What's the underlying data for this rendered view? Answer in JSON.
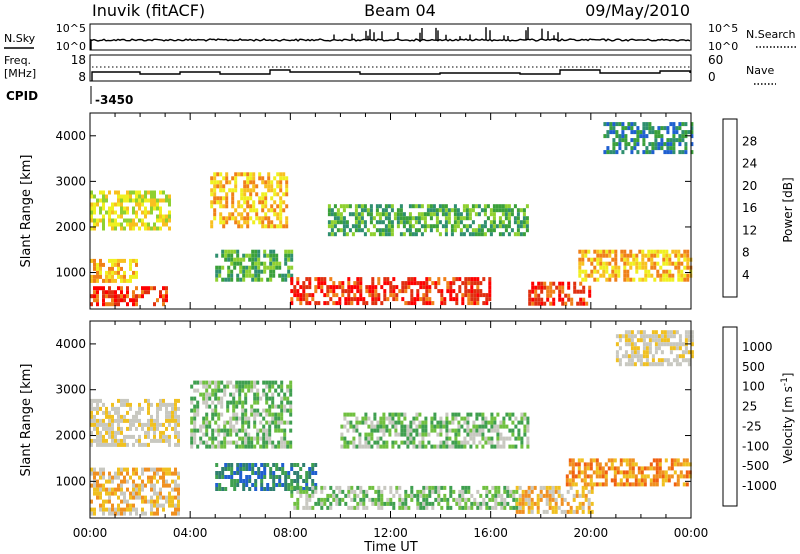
{
  "header": {
    "station": "Inuvik (fitACF)",
    "beam": "Beam 04",
    "date": "09/May/2010"
  },
  "top_panels": {
    "nsky": {
      "label": "N.Sky",
      "right_label": "N.Search",
      "left_ticks": [
        "10^5",
        "10^0"
      ],
      "right_ticks": [
        "10^5",
        "10^0"
      ]
    },
    "freq": {
      "label_line1": "Freq.",
      "label_line2": "[MHz]",
      "left_ticks": [
        "18",
        "8"
      ],
      "right_label": "Nave",
      "right_ticks": [
        "60",
        "0"
      ]
    },
    "cpid": {
      "label": "CPID",
      "value": "-3450"
    }
  },
  "chart_data": [
    {
      "type": "heatmap",
      "title": "",
      "xlabel": "Time UT",
      "ylabel": "Slant Range [km]",
      "x_range_hours": [
        0,
        24
      ],
      "x_ticks": [
        "00:00",
        "04:00",
        "08:00",
        "12:00",
        "16:00",
        "20:00",
        "00:00"
      ],
      "y_range_km": [
        200,
        4500
      ],
      "y_ticks": [
        1000,
        2000,
        3000,
        4000
      ],
      "colorbar": {
        "label": "Power [dB]",
        "ticks": [
          "4",
          "8",
          "12",
          "16",
          "20",
          "24",
          "28"
        ],
        "colors": [
          "#0000ff",
          "#1f5fd0",
          "#2f8f6f",
          "#3aa03a",
          "#8fd030",
          "#f0f020",
          "#f8c020",
          "#f08018",
          "#e03010",
          "#ff0000"
        ]
      },
      "echo_regions": [
        {
          "t": [
            0.0,
            3.0
          ],
          "range_km": [
            300,
            700
          ],
          "level": "28"
        },
        {
          "t": [
            0.0,
            1.8
          ],
          "range_km": [
            850,
            1300
          ],
          "level": "20"
        },
        {
          "t": [
            0.0,
            3.2
          ],
          "range_km": [
            2000,
            2800
          ],
          "level": "16"
        },
        {
          "t": [
            4.8,
            7.8
          ],
          "range_km": [
            2000,
            3200
          ],
          "level": "20"
        },
        {
          "t": [
            5.0,
            8.0
          ],
          "range_km": [
            800,
            1500
          ],
          "level": "12"
        },
        {
          "t": [
            8.0,
            16.0
          ],
          "range_km": [
            300,
            900
          ],
          "level": "28"
        },
        {
          "t": [
            9.5,
            17.5
          ],
          "range_km": [
            1800,
            2500
          ],
          "level": "12"
        },
        {
          "t": [
            17.5,
            20.0
          ],
          "range_km": [
            300,
            800
          ],
          "level": "28"
        },
        {
          "t": [
            19.5,
            24.0
          ],
          "range_km": [
            800,
            1500
          ],
          "level": "20"
        },
        {
          "t": [
            20.5,
            24.0
          ],
          "range_km": [
            3600,
            4300
          ],
          "level": "8"
        }
      ]
    },
    {
      "type": "heatmap",
      "title": "",
      "xlabel": "Time UT",
      "ylabel": "Slant Range [km]",
      "x_range_hours": [
        0,
        24
      ],
      "x_ticks": [
        "00:00",
        "04:00",
        "08:00",
        "12:00",
        "16:00",
        "20:00",
        "00:00"
      ],
      "y_range_km": [
        200,
        4500
      ],
      "y_ticks": [
        1000,
        2000,
        3000,
        4000
      ],
      "colorbar": {
        "label": "Velocity [m s^-1]",
        "ticks": [
          "1000",
          "500",
          "100",
          "25",
          "-25",
          "-100",
          "-500",
          "-1000"
        ],
        "colors": [
          "#2040c0",
          "#1f5fd0",
          "#2f7f6f",
          "#3f9f4f",
          "#70c040",
          "#c8c8c0",
          "#c8c8c0",
          "#f0c020",
          "#f09020",
          "#f06010",
          "#ff0000"
        ]
      },
      "echo_regions": [
        {
          "t": [
            0.0,
            3.5
          ],
          "range_km": [
            300,
            1300
          ],
          "level": "-100"
        },
        {
          "t": [
            0.0,
            3.5
          ],
          "range_km": [
            1800,
            2800
          ],
          "level": "-25"
        },
        {
          "t": [
            4.0,
            8.0
          ],
          "range_km": [
            1800,
            3200
          ],
          "level": "25"
        },
        {
          "t": [
            5.0,
            9.0
          ],
          "range_km": [
            800,
            1400
          ],
          "level": "500"
        },
        {
          "t": [
            8.0,
            17.0
          ],
          "range_km": [
            400,
            900
          ],
          "level": "25"
        },
        {
          "t": [
            10.0,
            17.5
          ],
          "range_km": [
            1800,
            2500
          ],
          "level": "25"
        },
        {
          "t": [
            17.0,
            20.0
          ],
          "range_km": [
            300,
            900
          ],
          "level": "-100"
        },
        {
          "t": [
            19.0,
            24.0
          ],
          "range_km": [
            900,
            1500
          ],
          "level": "-500"
        },
        {
          "t": [
            21.0,
            24.0
          ],
          "range_km": [
            3600,
            4300
          ],
          "level": "-25"
        }
      ]
    }
  ]
}
